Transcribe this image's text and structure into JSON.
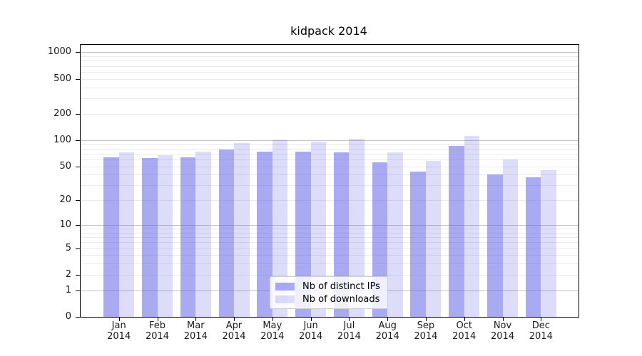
{
  "title": "kidpack 2014",
  "legend": {
    "ips_label": "Nb of distinct IPs",
    "downloads_label": "Nb of downloads"
  },
  "chart_data": {
    "type": "bar",
    "title": "kidpack 2014",
    "categories": [
      "Jan 2014",
      "Feb 2014",
      "Mar 2014",
      "Apr 2014",
      "May 2014",
      "Jun 2014",
      "Jul 2014",
      "Aug 2014",
      "Sep 2014",
      "Oct 2014",
      "Nov 2014",
      "Dec 2014"
    ],
    "series": [
      {
        "name": "Nb of distinct IPs",
        "key": "ips",
        "values": [
          64,
          62,
          64,
          78,
          74,
          74,
          73,
          56,
          43,
          85,
          40,
          37
        ]
      },
      {
        "name": "Nb of downloads",
        "key": "dl",
        "values": [
          72,
          67,
          74,
          93,
          102,
          96,
          104,
          72,
          58,
          112,
          60,
          45
        ]
      }
    ],
    "xlabel": "",
    "ylabel": "",
    "yscale": "log10(value+1), 0 shown at baseline",
    "yticks": [
      0,
      1,
      2,
      5,
      10,
      20,
      50,
      100,
      200,
      500,
      1000
    ],
    "major_gridlines_at": [
      1,
      10,
      100,
      1000
    ],
    "ylim": [
      0,
      1235
    ],
    "grid": "horizontal only, log minor + major",
    "legend_position": "bottom-center inside plot",
    "colors": {
      "bar_ips": "rgba(85,85,230,0.5)",
      "bar_downloads": "rgba(85,85,230,0.2)",
      "grid_major": "#c3c3c3",
      "grid_minor": "#ebebeb",
      "axis_frame": "#000000",
      "text": "#1a1a1a",
      "legend_border": "#cccccc",
      "legend_bg": "rgba(255,255,255,0.82)"
    }
  }
}
